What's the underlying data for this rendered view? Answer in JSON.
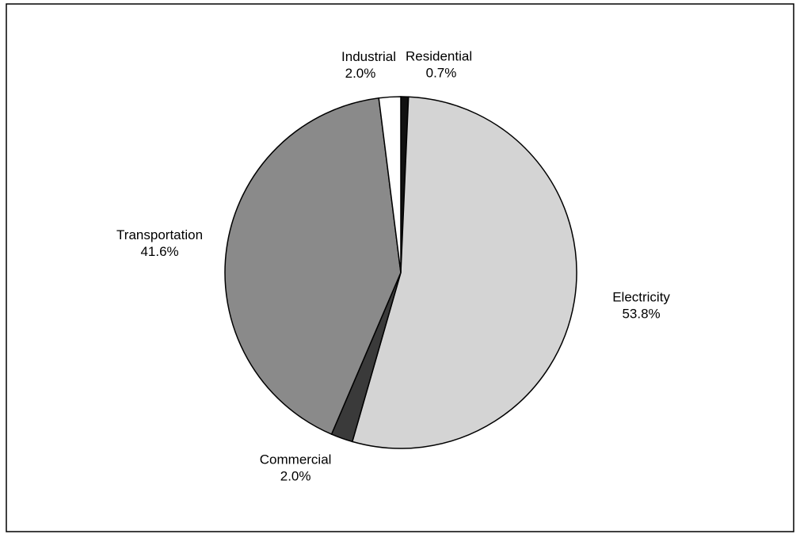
{
  "chart_data": {
    "type": "pie",
    "categories": [
      "Residential",
      "Electricity",
      "Commercial",
      "Transportation",
      "Industrial"
    ],
    "values": [
      0.7,
      53.8,
      2.0,
      41.6,
      2.0
    ],
    "value_labels": [
      "0.7%",
      "53.8%",
      "2.0%",
      "41.6%",
      "2.0%"
    ],
    "colors": [
      "#111111",
      "#d4d4d4",
      "#3a3a3a",
      "#8a8a8a",
      "#ffffff"
    ]
  }
}
